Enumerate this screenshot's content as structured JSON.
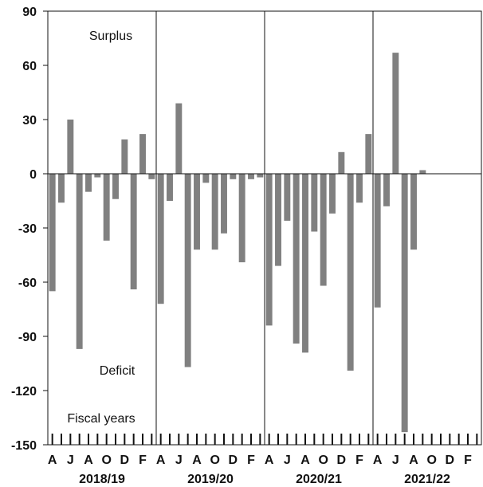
{
  "chart_data": {
    "type": "bar",
    "ylim": [
      -150,
      90
    ],
    "yticks": [
      90,
      60,
      30,
      0,
      -30,
      -60,
      -90,
      -120,
      -150
    ],
    "month_labels": [
      "A",
      "J",
      "A",
      "O",
      "D",
      "F"
    ],
    "fiscal_years": [
      "2018/19",
      "2019/20",
      "2020/21",
      "2021/22"
    ],
    "annotations": {
      "surplus": "Surplus",
      "deficit": "Deficit",
      "fiscal_years": "Fiscal years"
    },
    "bar_color": "#808080",
    "series": [
      {
        "values": [
          -65,
          -16,
          30,
          -97,
          -10,
          -2,
          -37,
          -14,
          19,
          -64,
          22,
          -3
        ]
      },
      {
        "values": [
          -72,
          -15,
          39,
          -107,
          -42,
          -5,
          -42,
          -33,
          -3,
          -49,
          -3,
          -2
        ]
      },
      {
        "values": [
          -84,
          -51,
          -26,
          -94,
          -99,
          -32,
          -62,
          -22,
          12,
          -109,
          -16,
          22
        ]
      },
      {
        "values": [
          -74,
          -18,
          67,
          -143,
          -42,
          2
        ]
      }
    ]
  }
}
